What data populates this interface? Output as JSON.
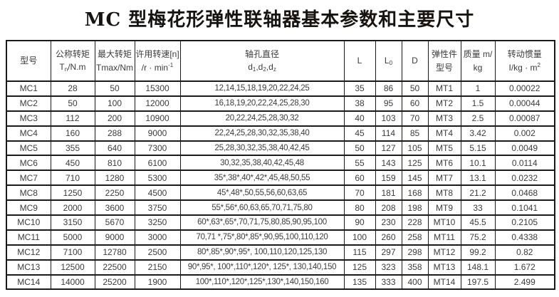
{
  "title": "MC 型梅花形弹性联轴器基本参数和主要尺寸",
  "colors": {
    "background": "#ffffff",
    "border": "#1c1916",
    "text": "#3c3c3c",
    "title_text": "#161310"
  },
  "table": {
    "columns": [
      {
        "id": "model",
        "label_html": "型号"
      },
      {
        "id": "nominal-torque",
        "label_html": "公称转矩<br>T<sub>n</sub>/N.m"
      },
      {
        "id": "max-torque",
        "label_html": "最大转矩<br>Tmax/Nm"
      },
      {
        "id": "speed",
        "label_html": "许用转速[n]<br>/r · min<sup>-1</sup>"
      },
      {
        "id": "bore",
        "label_html": "轴孔直径<br>d<sub>1</sub>,d<sub>2</sub>,d<sub>z</sub>"
      },
      {
        "id": "L",
        "label_html": "L"
      },
      {
        "id": "L0",
        "label_html": "L<sub>0</sub>"
      },
      {
        "id": "D",
        "label_html": "D"
      },
      {
        "id": "elastic-model",
        "label_html": "弹性件<br>型号"
      },
      {
        "id": "mass",
        "label_html": "质量 m/<br>kg"
      },
      {
        "id": "inertia",
        "label_html": "转动惯量<br>I/kg · m<sup>2</sup>"
      }
    ],
    "rows": [
      [
        "MC1",
        "28",
        "50",
        "15300",
        "12,14,15,18,19,20,22,24,25",
        "35",
        "86",
        "50",
        "MT1",
        "1",
        "0.00022"
      ],
      [
        "MC2",
        "50",
        "100",
        "12000",
        "16,18,19,20,22,24,25,28,30",
        "38",
        "95",
        "60",
        "MT2",
        "1.5",
        "0.00044"
      ],
      [
        "MC3",
        "112",
        "200",
        "10900",
        "20,22,24,25,28,30,32",
        "40",
        "103",
        "70",
        "MT3",
        "2.5",
        "0.00087"
      ],
      [
        "MC4",
        "160",
        "288",
        "9000",
        "22,24,25,28,30,32,35,38,40",
        "45",
        "114",
        "85",
        "MT4",
        "3.42",
        "0.002"
      ],
      [
        "MC5",
        "355",
        "640",
        "7300",
        "25,28,30,32,35,38,40,42,45",
        "50",
        "127",
        "105",
        "MT5",
        "5.15",
        "0.0049"
      ],
      [
        "MC6",
        "450",
        "810",
        "6100",
        "30,32,35,38,40,42,45,48",
        "55",
        "143",
        "125",
        "MT6",
        "10.1",
        "0.0114"
      ],
      [
        "MC7",
        "710",
        "1280",
        "5300",
        "35*,38*,40*,42*,45,48,50,55",
        "60",
        "159",
        "145",
        "MT7",
        "13.1",
        "0.0232"
      ],
      [
        "MC8",
        "1250",
        "2250",
        "4500",
        "45*,48*,50,55,56,60,63,65",
        "70",
        "181",
        "168",
        "MT8",
        "21.2",
        "0.0468"
      ],
      [
        "MC9",
        "2000",
        "3600",
        "3750",
        "55*,56*,60,63,65,70,71,75,80",
        "80",
        "208",
        "198",
        "MT9",
        "33",
        "0.1041"
      ],
      [
        "MC10",
        "3150",
        "5670",
        "3250",
        "60*,63*,65*,70,71,75,80,85,90,95,100",
        "90",
        "230",
        "228",
        "MT10",
        "45.5",
        "0.2105"
      ],
      [
        "MC11",
        "5000",
        "9000",
        "3000",
        "70,71 *,75*,80*,85*,90,95,100,110,120",
        "100",
        "260",
        "258",
        "MT11",
        "75.2",
        "0.4338"
      ],
      [
        "MC12",
        "7100",
        "12780",
        "2500",
        "80*,85*,90*,95*, 100,110,120,125,130",
        "115",
        "297",
        "298",
        "MT12",
        "99.2",
        "0.82"
      ],
      [
        "MC13",
        "12500",
        "22500",
        "2150",
        "90*,95*, 100*,110*,120*, 125*, 130,140,150",
        "125",
        "323",
        "358",
        "MT13",
        "148.1",
        "1.672"
      ],
      [
        "MC14",
        "14000",
        "25200",
        "1900",
        "100*,110*,120*,125*,130*,140,150,160",
        "135",
        "333",
        "400",
        "MT14",
        "197.5",
        "2.499"
      ]
    ]
  }
}
